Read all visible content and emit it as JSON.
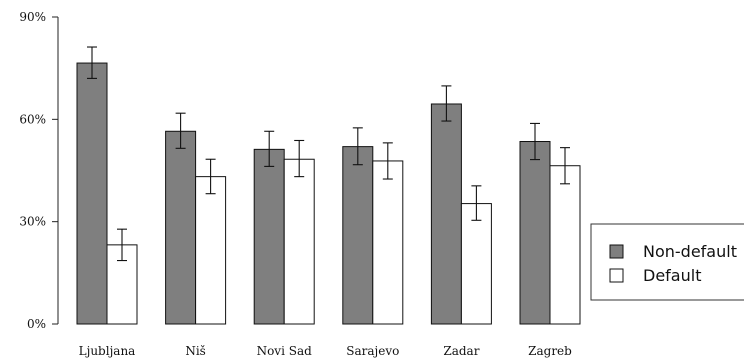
{
  "chart_data": {
    "type": "bar",
    "categories": [
      "Ljubljana",
      "Niš",
      "Novi Sad",
      "Sarajevo",
      "Zadar",
      "Zagreb"
    ],
    "series": [
      {
        "name": "Non-default",
        "color": "#7f7f7f",
        "values": [
          76.5,
          56.5,
          51.2,
          52.0,
          64.5,
          53.5
        ],
        "err_low": [
          72.0,
          51.5,
          46.2,
          46.7,
          59.5,
          48.2
        ],
        "err_high": [
          81.2,
          61.8,
          56.5,
          57.5,
          69.8,
          58.8
        ]
      },
      {
        "name": "Default",
        "color": "#ffffff",
        "values": [
          23.2,
          43.2,
          48.3,
          47.8,
          35.3,
          46.4
        ],
        "err_low": [
          18.6,
          38.2,
          43.2,
          42.5,
          30.4,
          41.1
        ],
        "err_high": [
          27.8,
          48.3,
          53.8,
          53.1,
          40.5,
          51.7
        ]
      }
    ],
    "ylim": [
      0,
      90
    ],
    "yticks": [
      "0%",
      "30%",
      "60%",
      "90%"
    ],
    "ytick_values": [
      0,
      30,
      60,
      90
    ],
    "grid": false,
    "legend_position": "right"
  }
}
